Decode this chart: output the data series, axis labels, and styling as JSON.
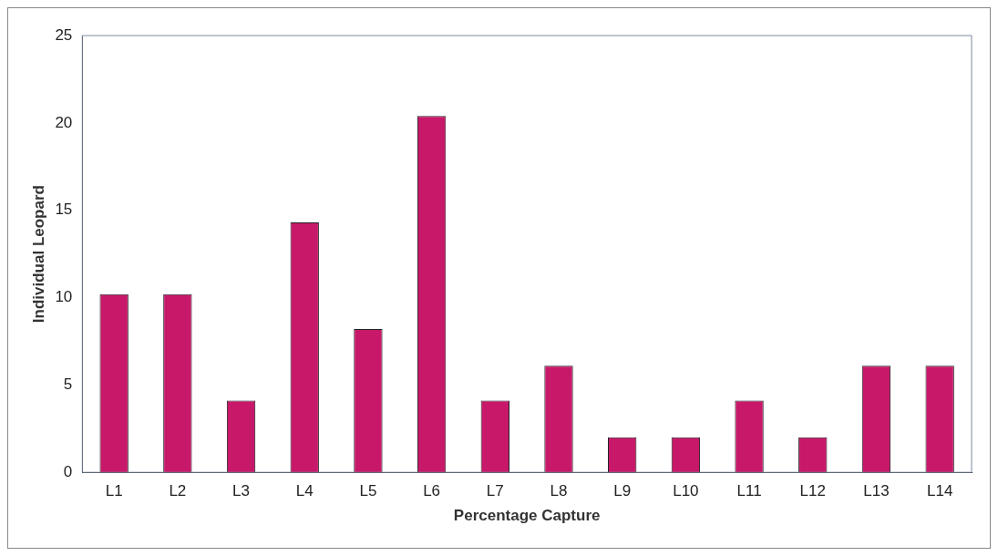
{
  "chart_data": {
    "type": "bar",
    "xlabel": "Percentage Capture",
    "ylabel": "Individual Leopard",
    "categories": [
      "L1",
      "L2",
      "L3",
      "L4",
      "L5",
      "L6",
      "L7",
      "L8",
      "L9",
      "L10",
      "L11",
      "L12",
      "L13",
      "L14"
    ],
    "values": [
      10.2,
      10.2,
      4.1,
      14.3,
      8.2,
      20.4,
      4.1,
      6.1,
      2.0,
      2.0,
      4.1,
      2.0,
      6.1,
      6.1
    ],
    "color": "#c8186a",
    "ylim": [
      0,
      25
    ],
    "yticks": [
      0,
      5,
      10,
      15,
      20,
      25
    ],
    "grid": false,
    "legend": false
  }
}
